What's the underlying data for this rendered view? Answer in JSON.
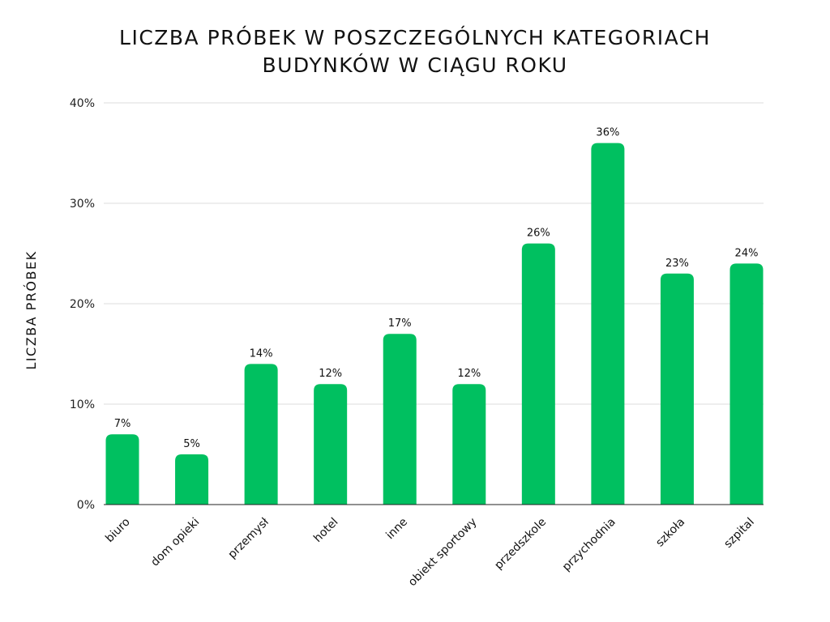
{
  "chart_data": {
    "type": "bar",
    "title": "LICZBA PRÓBEK W POSZCZEGÓLNYCH KATEGORIACH BUDYNKÓW W CIĄGU ROKU",
    "title_lines": [
      "LICZBA PRÓBEK W POSZCZEGÓLNYCH KATEGORIACH",
      "BUDYNKÓW W CIĄGU ROKU"
    ],
    "ylabel": "LICZBA PRÓBEK",
    "xlabel": "",
    "categories": [
      "biuro",
      "dom opieki",
      "przemysł",
      "hotel",
      "inne",
      "obiekt sportowy",
      "przedszkole",
      "przychodnia",
      "szkoła",
      "szpital"
    ],
    "values": [
      7,
      5,
      14,
      12,
      17,
      12,
      26,
      36,
      23,
      24
    ],
    "value_labels": [
      "7%",
      "5%",
      "14%",
      "12%",
      "17%",
      "12%",
      "26%",
      "36%",
      "23%",
      "24%"
    ],
    "ylim": [
      0,
      40
    ],
    "yticks": [
      0,
      10,
      20,
      30,
      40
    ],
    "ytick_labels": [
      "0%",
      "10%",
      "20%",
      "30%",
      "40%"
    ],
    "grid": true,
    "legend": "none",
    "bar_color": "#00c060",
    "grid_color": "#dddddd"
  }
}
